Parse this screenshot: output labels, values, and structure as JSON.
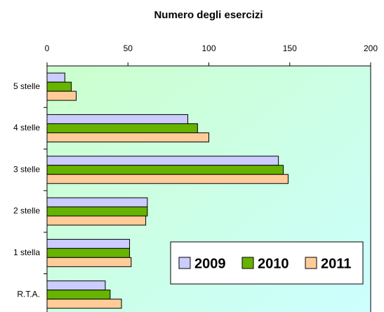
{
  "chart_data": {
    "type": "hbar",
    "title": "Numero degli esercizi",
    "categories": [
      "5 stelle",
      "4 stelle",
      "3 stelle",
      "2 stelle",
      "1 stella",
      "R.T.A."
    ],
    "series": [
      {
        "name": "2009",
        "color": "#ccccff",
        "values": [
          11,
          87,
          143,
          62,
          51,
          36
        ]
      },
      {
        "name": "2010",
        "color": "#66b300",
        "values": [
          15,
          93,
          146,
          62,
          51,
          39
        ]
      },
      {
        "name": "2011",
        "color": "#ffcc99",
        "values": [
          18,
          100,
          149,
          61,
          52,
          46
        ]
      }
    ],
    "xlim": [
      0,
      200
    ],
    "xticks": [
      0,
      50,
      100,
      150,
      200
    ],
    "legend": "lower right"
  }
}
